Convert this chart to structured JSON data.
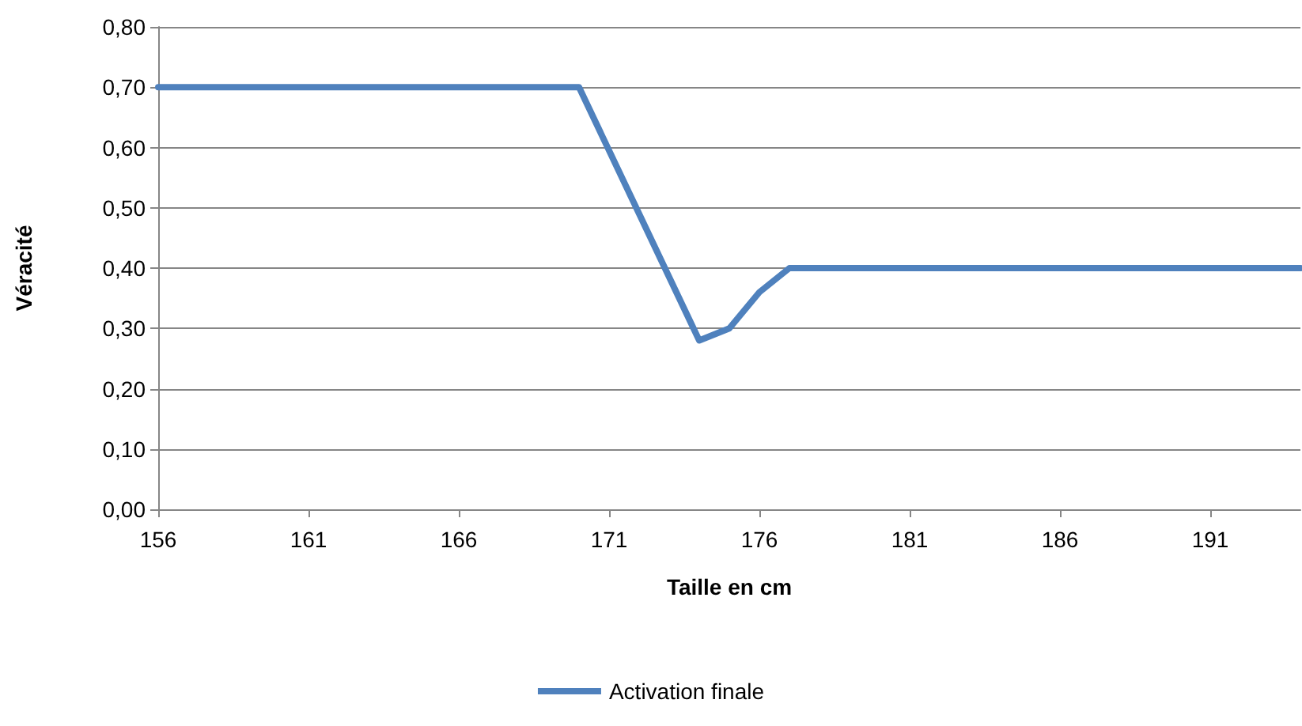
{
  "chart_data": {
    "type": "line",
    "xlabel": "Taille en cm",
    "ylabel": "Véracité",
    "series": [
      {
        "name": "Activation finale",
        "color": "#4f81bd",
        "x": [
          156,
          170,
          174,
          175,
          176,
          177,
          194
        ],
        "values": [
          0.7,
          0.7,
          0.28,
          0.3,
          0.36,
          0.4,
          0.4
        ]
      }
    ],
    "xlim": [
      156,
      194
    ],
    "xticks": [
      156,
      161,
      166,
      171,
      176,
      181,
      186,
      191
    ],
    "ylim": [
      0,
      0.8
    ],
    "yticks": [
      {
        "value": 0,
        "label": "0,00"
      },
      {
        "value": 0.1,
        "label": "0,10"
      },
      {
        "value": 0.2,
        "label": "0,20"
      },
      {
        "value": 0.3,
        "label": "0,30"
      },
      {
        "value": 0.4,
        "label": "0,40"
      },
      {
        "value": 0.5,
        "label": "0,50"
      },
      {
        "value": 0.6,
        "label": "0,60"
      },
      {
        "value": 0.7,
        "label": "0,70"
      },
      {
        "value": 0.8,
        "label": "0,80"
      }
    ],
    "grid": "y",
    "legend": "bottom",
    "marker": "none",
    "line_style": "solid"
  }
}
